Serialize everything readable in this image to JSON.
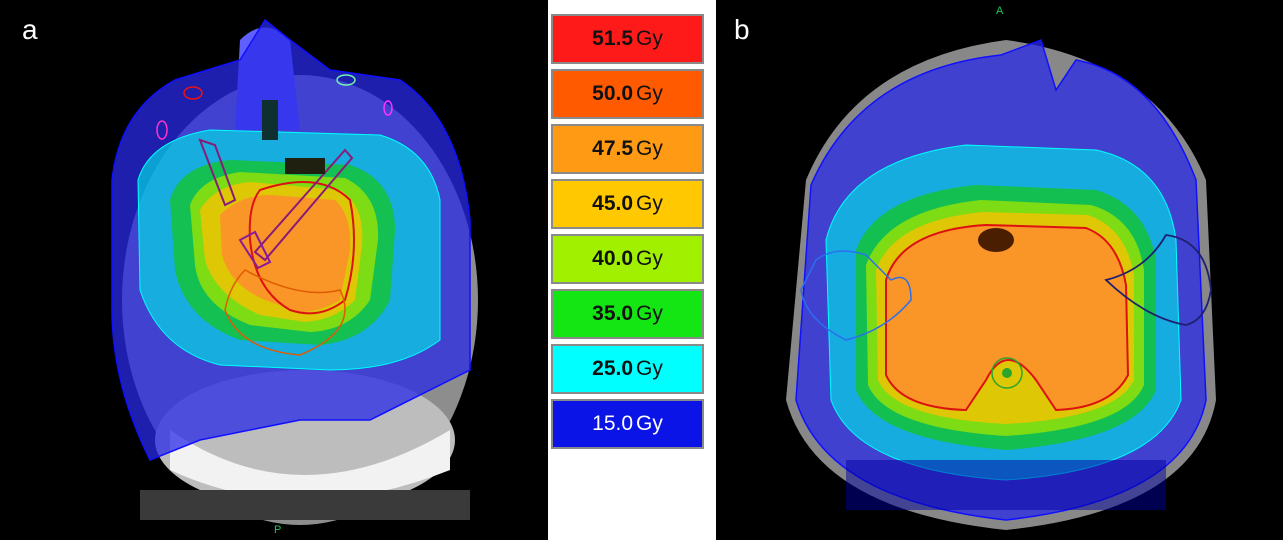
{
  "panels": [
    {
      "label": "a",
      "orientation_bottom": "P"
    },
    {
      "label": "b",
      "orientation_top": "A"
    }
  ],
  "legend": [
    {
      "value": "51.5",
      "unit": "Gy",
      "color": "#ff1a1a"
    },
    {
      "value": "50.0",
      "unit": "Gy",
      "color": "#ff5a00"
    },
    {
      "value": "47.5",
      "unit": "Gy",
      "color": "#ff9a14"
    },
    {
      "value": "45.0",
      "unit": "Gy",
      "color": "#ffc800"
    },
    {
      "value": "40.0",
      "unit": "Gy",
      "color": "#a0f000"
    },
    {
      "value": "35.0",
      "unit": "Gy",
      "color": "#14e614"
    },
    {
      "value": "25.0",
      "unit": "Gy",
      "color": "#00ffff"
    },
    {
      "value": "15.0",
      "unit": "Gy",
      "color": "#0a14e6"
    }
  ]
}
